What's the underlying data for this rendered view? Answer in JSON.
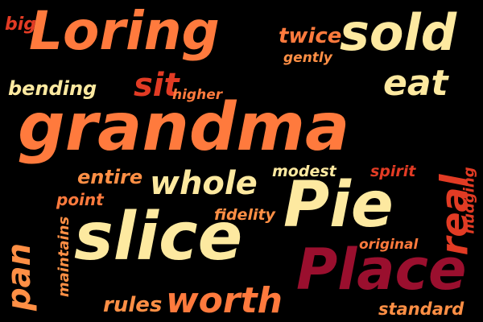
{
  "words": {
    "big": "big",
    "loring": "Loring",
    "twice": "twice",
    "sold": "sold",
    "gently": "gently",
    "bending": "bending",
    "sit": "sit",
    "higher": "higher",
    "eat": "eat",
    "grandma": "grandma",
    "entire": "entire",
    "whole": "whole",
    "modest": "modest",
    "spirit": "spirit",
    "real": "real",
    "point": "point",
    "nudging": "nudging",
    "pie": "Pie",
    "fidelity": "fidelity",
    "maintains": "maintains",
    "pan": "pan",
    "slice": "slice",
    "original": "original",
    "place": "Place",
    "rules": "rules",
    "worth": "worth",
    "standard": "standard"
  },
  "colors": {
    "background": "#000000",
    "cream": "#fde9a0",
    "orange": "#ff7a3d",
    "red": "#e23b24",
    "maroon": "#9a0f2e"
  }
}
